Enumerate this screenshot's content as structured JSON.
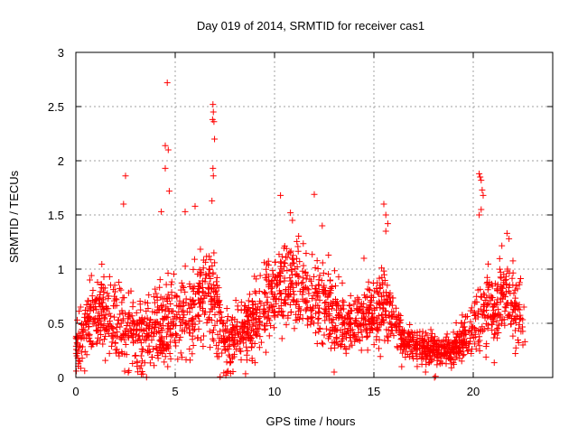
{
  "chart_data": {
    "type": "scatter",
    "title": "Day 019 of 2014, SRMTID for receiver cas1",
    "xlabel": "GPS time / hours",
    "ylabel": "SRMTID / TECUs",
    "xlim": [
      0,
      24
    ],
    "ylim": [
      0,
      3
    ],
    "xticks": [
      0,
      5,
      10,
      15,
      20
    ],
    "xtick_labels": [
      "0",
      "5",
      "10",
      "15",
      "20"
    ],
    "yticks": [
      0,
      0.5,
      1,
      1.5,
      2,
      2.5,
      3
    ],
    "ytick_labels": [
      "0",
      "0.5",
      "1",
      "1.5",
      "2",
      "2.5",
      "3"
    ],
    "grid": true,
    "marker": "plus",
    "series": [
      {
        "name": "SRMTID",
        "color": "#ff0000",
        "envelope": {
          "x": [
            0,
            0.5,
            1,
            1.5,
            2,
            2.5,
            3,
            3.5,
            4,
            4.5,
            5,
            5.5,
            6,
            6.5,
            7,
            7.5,
            8,
            8.5,
            9,
            9.5,
            10,
            10.5,
            11,
            11.5,
            12,
            12.5,
            13,
            13.5,
            14,
            14.5,
            15,
            15.5,
            16,
            16.5,
            17,
            17.5,
            18,
            18.5,
            19,
            19.5,
            20,
            20.5,
            21,
            21.5,
            22,
            22.5
          ],
          "center": [
            0.3,
            0.45,
            0.55,
            0.6,
            0.5,
            0.45,
            0.4,
            0.4,
            0.45,
            0.5,
            0.55,
            0.6,
            0.65,
            0.7,
            0.75,
            0.3,
            0.35,
            0.45,
            0.55,
            0.7,
            0.8,
            0.85,
            0.9,
            0.8,
            0.75,
            0.7,
            0.6,
            0.5,
            0.5,
            0.55,
            0.6,
            0.65,
            0.55,
            0.35,
            0.3,
            0.28,
            0.25,
            0.22,
            0.25,
            0.35,
            0.5,
            0.6,
            0.65,
            0.75,
            0.7,
            0.55
          ],
          "spread": [
            0.3,
            0.35,
            0.4,
            0.45,
            0.45,
            0.45,
            0.45,
            0.45,
            0.45,
            0.5,
            0.5,
            0.5,
            0.5,
            0.55,
            0.55,
            0.35,
            0.35,
            0.4,
            0.45,
            0.5,
            0.5,
            0.45,
            0.45,
            0.45,
            0.45,
            0.45,
            0.4,
            0.35,
            0.35,
            0.4,
            0.4,
            0.4,
            0.3,
            0.22,
            0.2,
            0.18,
            0.18,
            0.15,
            0.18,
            0.25,
            0.35,
            0.45,
            0.5,
            0.5,
            0.45,
            0.35
          ]
        },
        "point_count": 2200,
        "points": [
          [
            0.05,
            0.2
          ],
          [
            0.1,
            0.18
          ],
          [
            0.7,
            0.9
          ],
          [
            2.5,
            1.86
          ],
          [
            2.4,
            1.6
          ],
          [
            3.3,
            0.03
          ],
          [
            4.6,
            2.72
          ],
          [
            4.5,
            2.14
          ],
          [
            4.65,
            2.1
          ],
          [
            4.5,
            1.93
          ],
          [
            4.7,
            1.72
          ],
          [
            4.3,
            1.53
          ],
          [
            6.9,
            2.52
          ],
          [
            6.92,
            2.45
          ],
          [
            6.88,
            2.38
          ],
          [
            6.95,
            2.36
          ],
          [
            6.98,
            2.2
          ],
          [
            6.9,
            1.93
          ],
          [
            6.92,
            1.86
          ],
          [
            6.85,
            1.63
          ],
          [
            6.0,
            1.58
          ],
          [
            5.5,
            1.53
          ],
          [
            7.55,
            0.02
          ],
          [
            7.6,
            0.05
          ],
          [
            10.3,
            1.68
          ],
          [
            10.8,
            1.52
          ],
          [
            10.9,
            1.45
          ],
          [
            12.0,
            1.69
          ],
          [
            12.4,
            1.4
          ],
          [
            15.5,
            1.6
          ],
          [
            15.6,
            1.5
          ],
          [
            15.7,
            1.42
          ],
          [
            15.6,
            1.35
          ],
          [
            14.5,
            1.1
          ],
          [
            13.0,
            0.05
          ],
          [
            16.4,
            0.1
          ],
          [
            17.6,
            0.05
          ],
          [
            18.05,
            0.0
          ],
          [
            18.1,
            0.01
          ],
          [
            20.3,
            1.88
          ],
          [
            20.35,
            1.85
          ],
          [
            20.4,
            1.82
          ],
          [
            20.45,
            1.73
          ],
          [
            20.5,
            1.68
          ],
          [
            20.4,
            1.55
          ],
          [
            20.3,
            1.5
          ],
          [
            21.7,
            1.33
          ],
          [
            21.8,
            1.28
          ],
          [
            22.5,
            0.3
          ],
          [
            22.6,
            0.33
          ],
          [
            22.55,
            0.65
          ]
        ]
      }
    ]
  }
}
